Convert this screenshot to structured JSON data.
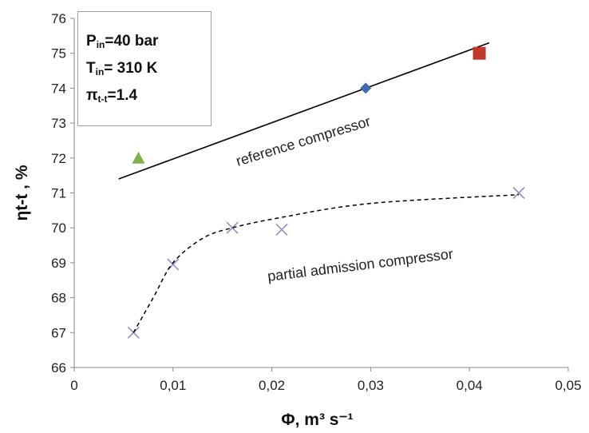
{
  "chart_data": {
    "type": "scatter",
    "xlabel": "Φ, m³ s⁻¹",
    "ylabel": "ηt-t , %",
    "xlim": [
      0,
      0.05
    ],
    "ylim": [
      66,
      76
    ],
    "x_ticks": [
      "0",
      "0,01",
      "0,02",
      "0,03",
      "0,04",
      "0,05"
    ],
    "y_ticks": [
      "66",
      "67",
      "68",
      "69",
      "70",
      "71",
      "72",
      "73",
      "74",
      "75",
      "76"
    ],
    "grid": false,
    "annotations": {
      "box": [
        {
          "sym": "P",
          "sub": "in",
          "rest": "=40 bar"
        },
        {
          "sym": "T",
          "sub": "in",
          "rest": "= 310 K"
        },
        {
          "sym": "π",
          "sub": "t-t",
          "rest": "=1.4"
        }
      ],
      "reference_label": "reference compressor",
      "partial_label": "partial admission compressor"
    },
    "series": [
      {
        "label": "reference compressor",
        "style": "solid-line",
        "color": "#000000",
        "points": [
          [
            0.0045,
            71.4
          ],
          [
            0.042,
            75.3
          ]
        ]
      },
      {
        "label": "partial admission compressor",
        "style": "x-markers",
        "color": "#9b8ac8",
        "points": [
          [
            0.006,
            67.0
          ],
          [
            0.01,
            68.95
          ],
          [
            0.016,
            70.0
          ],
          [
            0.021,
            69.95
          ],
          [
            0.045,
            71.0
          ]
        ]
      },
      {
        "style": "dashed-trend",
        "color": "#000000",
        "points": [
          [
            0.006,
            67.0
          ],
          [
            0.008,
            68.0
          ],
          [
            0.01,
            69.0
          ],
          [
            0.013,
            69.7
          ],
          [
            0.016,
            70.0
          ],
          [
            0.021,
            70.3
          ],
          [
            0.03,
            70.7
          ],
          [
            0.045,
            70.95
          ]
        ]
      },
      {
        "style": "triangle-marker",
        "color": "#7fb24a",
        "points": [
          [
            0.0065,
            72.0
          ]
        ]
      },
      {
        "style": "diamond-marker",
        "color": "#3d6eb4",
        "points": [
          [
            0.0295,
            74.0
          ]
        ]
      },
      {
        "style": "square-marker",
        "color": "#c0392b",
        "points": [
          [
            0.041,
            75.0
          ]
        ]
      }
    ]
  }
}
